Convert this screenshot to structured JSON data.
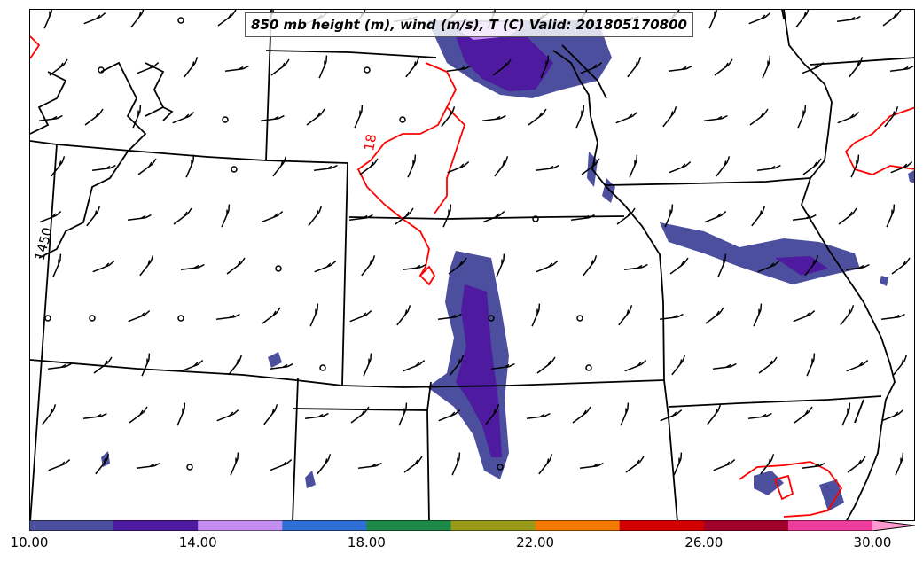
{
  "map": {
    "title": "850 mb height (m), wind (m/s), T (C) Valid: 201805170800",
    "isotherm_label": "18",
    "isotherm_color": "#ff0000",
    "height_contour_label": "1450",
    "boundary_color": "#000000"
  },
  "colorbar": {
    "min": 10,
    "max": 30,
    "step": 2,
    "extend": "max",
    "colors": [
      "#4b4f9d",
      "#4e1aa0",
      "#c48ef0",
      "#2f6fd6",
      "#1e8a4a",
      "#9a9a1a",
      "#f47a00",
      "#d40000",
      "#a0002a",
      "#f03c9c"
    ],
    "extend_color": "#ff9ad0",
    "tick_labels": [
      "10.00",
      "14.00",
      "18.00",
      "22.00",
      "26.00",
      "30.00"
    ]
  }
}
